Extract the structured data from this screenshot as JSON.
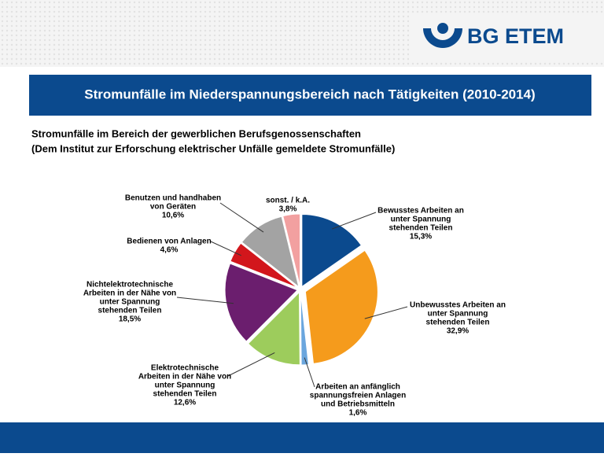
{
  "logo": "BG ETEM",
  "chart_data": {
    "type": "pie",
    "title": "Stromunfälle im Niederspannungsbereich nach Tätigkeiten (2010-2014)",
    "subtitle": [
      "Stromunfälle im Bereich der gewerblichen Berufsgenossenschaften",
      "(Dem Institut zur Erforschung elektrischer Unfälle gemeldete Stromunfälle)"
    ],
    "categories": [
      [
        "Bewusstes Arbeiten an",
        "unter Spannung",
        "stehenden Teilen"
      ],
      [
        "Unbewusstes Arbeiten an",
        "unter Spannung",
        "stehenden Teilen"
      ],
      [
        "Arbeiten an anfänglich",
        "spannungsfreien Anlagen",
        "und Betriebsmitteln"
      ],
      [
        "Elektrotechnische",
        "Arbeiten in der Nähe von",
        "unter Spannung",
        "stehenden Teilen"
      ],
      [
        "Nichtelektrotechnische",
        "Arbeiten in der Nähe von",
        "unter Spannung",
        "stehenden Teilen"
      ],
      [
        "Bedienen von Anlagen"
      ],
      [
        "Benutzen und handhaben",
        "von Geräten"
      ],
      [
        "sonst. / k.A."
      ]
    ],
    "values": [
      15.3,
      32.9,
      1.6,
      12.6,
      18.5,
      4.6,
      10.6,
      3.8
    ],
    "value_labels": [
      "15,3%",
      "32,9%",
      "1,6%",
      "12,6%",
      "18,5%",
      "4,6%",
      "10,6%",
      "3,8%"
    ],
    "colors": [
      "#0b4a8e",
      "#f59b1c",
      "#6aa6de",
      "#9dcc5c",
      "#6b1e6e",
      "#d2161c",
      "#a3a3a3",
      "#f2a0a0"
    ]
  }
}
